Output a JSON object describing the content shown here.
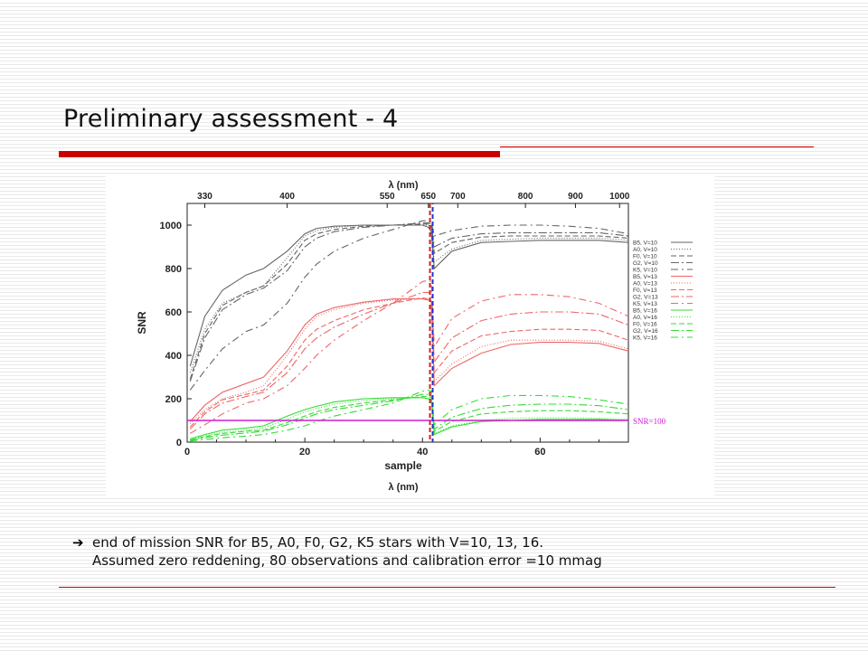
{
  "slide": {
    "title": "Preliminary assessment - 4",
    "caption_line1": "end of mission SNR for B5, A0, F0, G2, K5 stars with V=10, 13, 16.",
    "caption_line2": "Assumed zero reddening, 80 observations and calibration error =10 mmag",
    "arrow_glyph": "➔",
    "accent_color": "#cc0000"
  },
  "chart_data": {
    "type": "line",
    "xlabel": "sample",
    "ylabel": "SNR",
    "top_axis_label": "λ (nm)",
    "bottom_axis_label": "λ (nm)",
    "xlim": [
      0,
      75
    ],
    "ylim": [
      0,
      1100
    ],
    "x_ticks": [
      0,
      20,
      40,
      60
    ],
    "y_ticks": [
      0,
      200,
      400,
      600,
      800,
      1000
    ],
    "top_ticks": [
      {
        "label": "330",
        "x": 3
      },
      {
        "label": "400",
        "x": 17
      },
      {
        "label": "550",
        "x": 34
      },
      {
        "label": "650",
        "x": 41
      },
      {
        "label": "700",
        "x": 46
      },
      {
        "label": "800",
        "x": 57.5
      },
      {
        "label": "900",
        "x": 66
      },
      {
        "label": "1000",
        "x": 73.5
      }
    ],
    "threshold": {
      "y": 100,
      "label": "SNR=100",
      "color": "#d11ad1"
    },
    "divider": {
      "x": 41.5,
      "colors": [
        "#cc2222",
        "#2233cc"
      ]
    },
    "x": [
      0.5,
      3,
      6,
      10,
      13,
      17,
      20,
      22,
      25,
      30,
      35,
      40,
      41,
      41.5,
      42,
      45,
      50,
      55,
      60,
      65,
      70,
      75
    ],
    "series": [
      {
        "name": "B5, V=10",
        "color": "#666666",
        "dash": "",
        "values": [
          350,
          580,
          700,
          770,
          800,
          880,
          960,
          985,
          995,
          1000,
          1000,
          1000,
          990,
          970,
          800,
          880,
          920,
          925,
          930,
          930,
          930,
          920
        ]
      },
      {
        "name": "A0, V=10",
        "color": "#666666",
        "dash": "1,2",
        "values": [
          320,
          520,
          640,
          690,
          720,
          850,
          950,
          975,
          990,
          1000,
          1000,
          1000,
          1000,
          990,
          830,
          890,
          930,
          935,
          940,
          940,
          940,
          930
        ]
      },
      {
        "name": "F0, V=10",
        "color": "#666666",
        "dash": "6,3",
        "values": [
          290,
          500,
          630,
          690,
          720,
          820,
          930,
          960,
          980,
          995,
          1000,
          1005,
          1005,
          1000,
          870,
          920,
          945,
          950,
          950,
          950,
          950,
          940
        ]
      },
      {
        "name": "G2, V=10",
        "color": "#666666",
        "dash": "9,3,2,3",
        "values": [
          280,
          480,
          610,
          680,
          710,
          790,
          900,
          940,
          970,
          990,
          1000,
          1010,
          1010,
          1005,
          900,
          940,
          960,
          965,
          965,
          965,
          965,
          950
        ]
      },
      {
        "name": "K5, V=10",
        "color": "#666666",
        "dash": "8,4,2,4",
        "values": [
          240,
          330,
          430,
          510,
          540,
          640,
          760,
          820,
          880,
          940,
          980,
          1020,
          1020,
          1015,
          950,
          975,
          995,
          1000,
          1000,
          995,
          985,
          960
        ]
      },
      {
        "name": "B5, V=13",
        "color": "#ee6666",
        "dash": "",
        "values": [
          95,
          170,
          230,
          270,
          300,
          420,
          540,
          590,
          620,
          645,
          660,
          660,
          655,
          650,
          260,
          340,
          410,
          450,
          460,
          460,
          455,
          420
        ]
      },
      {
        "name": "A0, V=13",
        "color": "#ee6666",
        "dash": "1,2",
        "values": [
          85,
          150,
          200,
          230,
          260,
          400,
          520,
          580,
          610,
          640,
          655,
          660,
          655,
          650,
          280,
          360,
          440,
          470,
          470,
          470,
          465,
          430
        ]
      },
      {
        "name": "F0, V=13",
        "color": "#ee6666",
        "dash": "6,3",
        "values": [
          70,
          140,
          195,
          220,
          240,
          350,
          470,
          520,
          560,
          610,
          640,
          665,
          660,
          650,
          320,
          420,
          490,
          510,
          520,
          520,
          515,
          470
        ]
      },
      {
        "name": "G2, V=13",
        "color": "#ee6666",
        "dash": "9,3,2,3",
        "values": [
          60,
          130,
          180,
          210,
          230,
          320,
          430,
          480,
          530,
          590,
          640,
          690,
          690,
          680,
          370,
          480,
          560,
          590,
          600,
          600,
          590,
          540
        ]
      },
      {
        "name": "K5, V=13",
        "color": "#ee6666",
        "dash": "8,4,2,4",
        "values": [
          40,
          80,
          130,
          180,
          200,
          260,
          340,
          400,
          470,
          560,
          640,
          740,
          745,
          740,
          440,
          570,
          650,
          680,
          680,
          670,
          640,
          580
        ]
      },
      {
        "name": "B5, V=16",
        "color": "#33dd33",
        "dash": "",
        "values": [
          15,
          35,
          55,
          65,
          75,
          120,
          150,
          165,
          185,
          200,
          205,
          205,
          200,
          195,
          35,
          70,
          95,
          100,
          105,
          105,
          105,
          100
        ]
      },
      {
        "name": "A0, V=16",
        "color": "#33dd33",
        "dash": "1,2",
        "values": [
          12,
          30,
          45,
          55,
          65,
          105,
          140,
          155,
          175,
          192,
          200,
          205,
          200,
          195,
          40,
          75,
          100,
          110,
          112,
          112,
          110,
          105
        ]
      },
      {
        "name": "F0, V=16",
        "color": "#33dd33",
        "dash": "6,3",
        "values": [
          10,
          25,
          40,
          50,
          55,
          90,
          120,
          140,
          160,
          180,
          195,
          210,
          210,
          205,
          50,
          95,
          130,
          140,
          145,
          145,
          140,
          130
        ]
      },
      {
        "name": "G2, V=16",
        "color": "#33dd33",
        "dash": "9,3,2,3",
        "values": [
          8,
          20,
          32,
          42,
          50,
          80,
          110,
          130,
          150,
          170,
          190,
          220,
          220,
          215,
          60,
          115,
          155,
          170,
          175,
          175,
          168,
          150
        ]
      },
      {
        "name": "K5, V=16",
        "color": "#33dd33",
        "dash": "8,4,2,4",
        "values": [
          5,
          12,
          20,
          28,
          35,
          55,
          75,
          95,
          120,
          150,
          180,
          235,
          240,
          235,
          80,
          150,
          200,
          215,
          215,
          210,
          195,
          175
        ]
      }
    ]
  }
}
